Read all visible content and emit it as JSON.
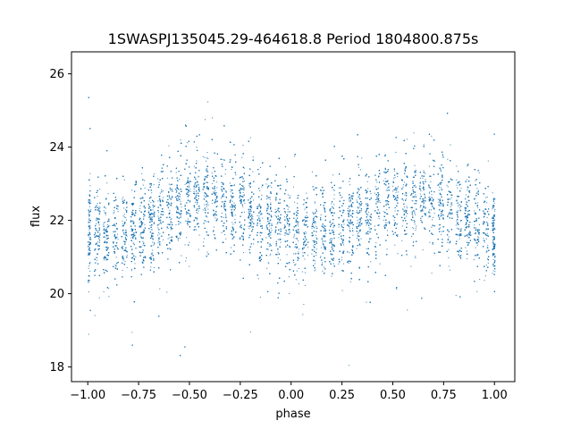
{
  "chart_data": {
    "type": "scatter",
    "title": "1SWASPJ135045.29-464618.8 Period 1804800.875s",
    "xlabel": "phase",
    "ylabel": "flux",
    "xlim": [
      -1.08,
      1.1
    ],
    "ylim": [
      17.6,
      26.6
    ],
    "xticks": [
      "−1.00",
      "−0.75",
      "−0.50",
      "−0.25",
      "0.00",
      "0.25",
      "0.50",
      "0.75",
      "1.00"
    ],
    "xtick_values": [
      -1.0,
      -0.75,
      -0.5,
      -0.25,
      0.0,
      0.25,
      0.5,
      0.75,
      1.0
    ],
    "yticks": [
      "18",
      "20",
      "22",
      "24",
      "26"
    ],
    "ytick_values": [
      18,
      20,
      22,
      24,
      26
    ],
    "grid": false,
    "marker_color": "#1f77b4",
    "series": [
      {
        "phase_range": [
          -1.0,
          1.0
        ],
        "period_in_phase": 1.0,
        "mean_flux": 22.1,
        "amplitude": 0.5,
        "flux_max_phase": 0.6,
        "flux_min_phase": 0.0,
        "approx_point_count": 20000,
        "sample_points": [
          [
            -1.0,
            21.4
          ],
          [
            -0.95,
            21.8
          ],
          [
            -0.9,
            21.6
          ],
          [
            -0.85,
            21.7
          ],
          [
            -0.8,
            21.5
          ],
          [
            -0.75,
            21.9
          ],
          [
            -0.7,
            22.0
          ],
          [
            -0.65,
            22.1
          ],
          [
            -0.6,
            22.3
          ],
          [
            -0.55,
            22.4
          ],
          [
            -0.5,
            22.6
          ],
          [
            -0.45,
            22.6
          ],
          [
            -0.4,
            22.7
          ],
          [
            -0.35,
            22.5
          ],
          [
            -0.3,
            22.4
          ],
          [
            -0.25,
            22.2
          ],
          [
            -0.2,
            22.1
          ],
          [
            -0.15,
            21.9
          ],
          [
            -0.1,
            21.7
          ],
          [
            -0.05,
            21.6
          ],
          [
            0.0,
            21.5
          ],
          [
            0.05,
            21.6
          ],
          [
            0.1,
            21.7
          ],
          [
            0.15,
            21.5
          ],
          [
            0.2,
            21.6
          ],
          [
            0.25,
            21.8
          ],
          [
            0.3,
            21.9
          ],
          [
            0.35,
            22.0
          ],
          [
            0.4,
            22.3
          ],
          [
            0.45,
            22.4
          ],
          [
            0.5,
            22.6
          ],
          [
            0.55,
            22.6
          ],
          [
            0.6,
            22.7
          ],
          [
            0.65,
            22.6
          ],
          [
            0.7,
            22.4
          ],
          [
            0.75,
            22.3
          ],
          [
            0.8,
            22.1
          ],
          [
            0.85,
            22.0
          ],
          [
            0.9,
            21.8
          ],
          [
            0.95,
            21.6
          ],
          [
            1.0,
            21.5
          ]
        ]
      }
    ]
  }
}
